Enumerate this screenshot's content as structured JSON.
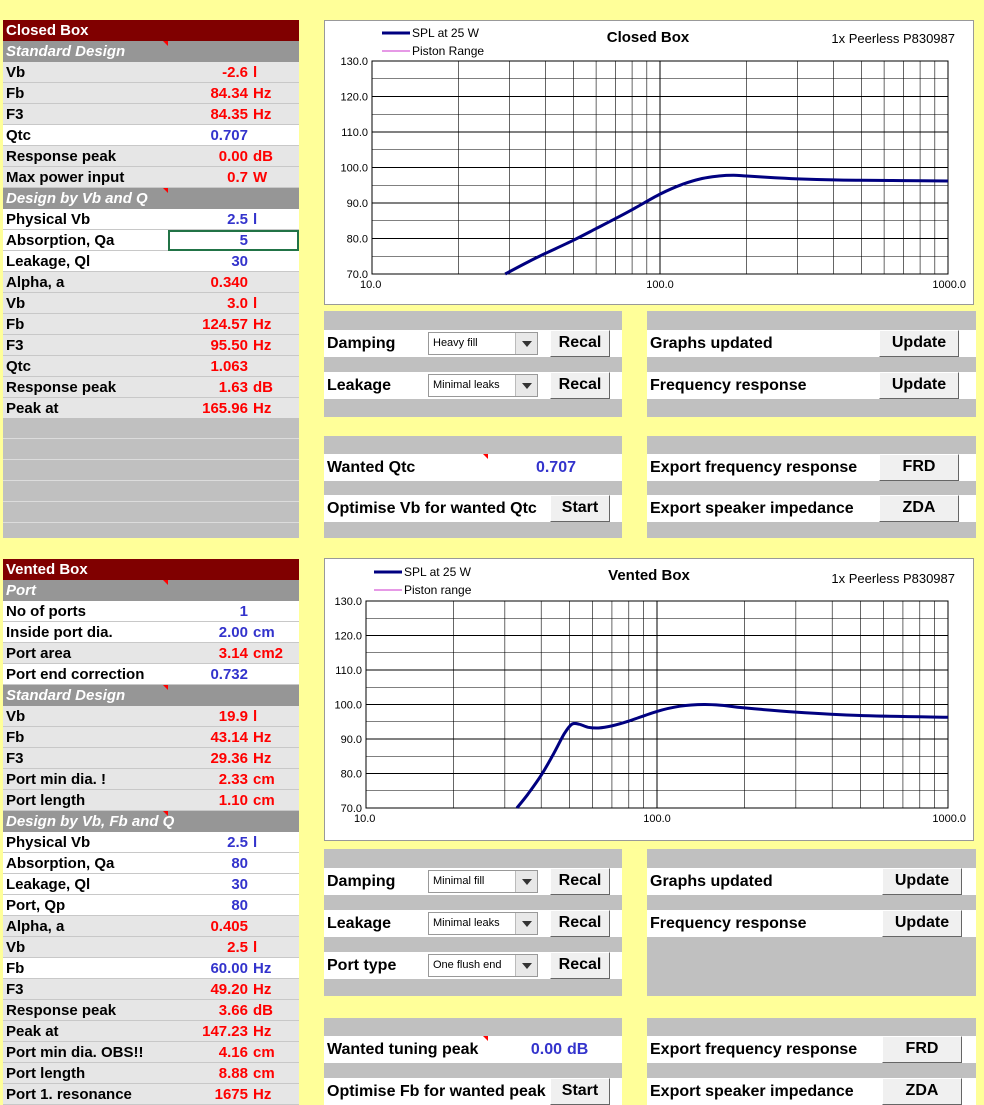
{
  "closed_table": {
    "title": "Closed Box",
    "rows": [
      {
        "label": "Standard Design",
        "kind": "sec"
      },
      {
        "label": "Vb",
        "value": "-2.6",
        "unit": "l",
        "color": "red"
      },
      {
        "label": "Fb",
        "value": "84.34",
        "unit": "Hz",
        "color": "red"
      },
      {
        "label": "F3",
        "value": "84.35",
        "unit": "Hz",
        "color": "red"
      },
      {
        "label": "Qtc",
        "value": "0.707",
        "unit": "",
        "color": "blue"
      },
      {
        "label": "Response peak",
        "value": "0.00",
        "unit": "dB",
        "color": "red"
      },
      {
        "label": "Max power input",
        "value": "0.7",
        "unit": "W",
        "color": "red"
      },
      {
        "label": "Design by Vb and Q",
        "kind": "sec"
      },
      {
        "label": "Physical Vb",
        "value": "2.5",
        "unit": "l",
        "color": "blue"
      },
      {
        "label": "Absorption, Qa",
        "value": "5",
        "unit": "",
        "color": "blue",
        "selected": true
      },
      {
        "label": "Leakage, Ql",
        "value": "30",
        "unit": "",
        "color": "blue"
      },
      {
        "label": "Alpha, a",
        "value": "0.340",
        "unit": "",
        "color": "red"
      },
      {
        "label": "Vb",
        "value": "3.0",
        "unit": "l",
        "color": "red"
      },
      {
        "label": "Fb",
        "value": "124.57",
        "unit": "Hz",
        "color": "red"
      },
      {
        "label": "F3",
        "value": "95.50",
        "unit": "Hz",
        "color": "red"
      },
      {
        "label": "Qtc",
        "value": "1.063",
        "unit": "",
        "color": "red"
      },
      {
        "label": "Response peak",
        "value": "1.63",
        "unit": "dB",
        "color": "red"
      },
      {
        "label": "Peak at",
        "value": "165.96",
        "unit": "Hz",
        "color": "red"
      }
    ]
  },
  "vented_table": {
    "title": "Vented Box",
    "rows": [
      {
        "label": "Port",
        "kind": "sec"
      },
      {
        "label": "No of ports",
        "value": "1",
        "unit": "",
        "color": "blue"
      },
      {
        "label": "Inside port dia.",
        "value": "2.00",
        "unit": "cm",
        "color": "blue"
      },
      {
        "label": "Port area",
        "value": "3.14",
        "unit": "cm2",
        "color": "red"
      },
      {
        "label": "Port end correction",
        "value": "0.732",
        "unit": "",
        "color": "blue"
      },
      {
        "label": "Standard Design",
        "kind": "sec"
      },
      {
        "label": "Vb",
        "value": "19.9",
        "unit": "l",
        "color": "red"
      },
      {
        "label": "Fb",
        "value": "43.14",
        "unit": "Hz",
        "color": "red"
      },
      {
        "label": "F3",
        "value": "29.36",
        "unit": "Hz",
        "color": "red"
      },
      {
        "label": "Port min dia. !",
        "value": "2.33",
        "unit": "cm",
        "color": "red"
      },
      {
        "label": "Port length",
        "value": "1.10",
        "unit": "cm",
        "color": "red"
      },
      {
        "label": "Design by Vb, Fb and Q",
        "kind": "sec"
      },
      {
        "label": "Physical Vb",
        "value": "2.5",
        "unit": "l",
        "color": "blue"
      },
      {
        "label": "Absorption, Qa",
        "value": "80",
        "unit": "",
        "color": "blue"
      },
      {
        "label": "Leakage, Ql",
        "value": "30",
        "unit": "",
        "color": "blue"
      },
      {
        "label": "Port, Qp",
        "value": "80",
        "unit": "",
        "color": "blue"
      },
      {
        "label": "Alpha, a",
        "value": "0.405",
        "unit": "",
        "color": "red"
      },
      {
        "label": "Vb",
        "value": "2.5",
        "unit": "l",
        "color": "red"
      },
      {
        "label": "Fb",
        "value": "60.00",
        "unit": "Hz",
        "color": "blue"
      },
      {
        "label": "F3",
        "value": "49.20",
        "unit": "Hz",
        "color": "red"
      },
      {
        "label": "Response peak",
        "value": "3.66",
        "unit": "dB",
        "color": "red"
      },
      {
        "label": "Peak at",
        "value": "147.23",
        "unit": "Hz",
        "color": "red"
      },
      {
        "label": "Port min dia. OBS!!",
        "value": "4.16",
        "unit": "cm",
        "color": "red"
      },
      {
        "label": "Port length",
        "value": "8.88",
        "unit": "cm",
        "color": "red"
      },
      {
        "label": "Port 1. resonance",
        "value": "1675",
        "unit": "Hz",
        "color": "red"
      }
    ]
  },
  "closed_controls": {
    "damping_label": "Damping",
    "damping_value": "Heavy fill",
    "recal": "Recal",
    "leakage_label": "Leakage",
    "leakage_value": "Minimal leaks",
    "wanted_qtc_label": "Wanted Qtc",
    "wanted_qtc_value": "0.707",
    "optimise_label": "Optimise Vb for wanted Qtc",
    "start": "Start"
  },
  "closed_right": {
    "graphs_updated": "Graphs updated",
    "freq_response": "Frequency response",
    "update": "Update",
    "export_freq": "Export frequency response",
    "frd": "FRD",
    "export_imp": "Export speaker impedance",
    "zda": "ZDA"
  },
  "vented_controls": {
    "damping_label": "Damping",
    "damping_value": "Minimal fill",
    "recal": "Recal",
    "leakage_label": "Leakage",
    "leakage_value": "Minimal leaks",
    "port_type_label": "Port type",
    "port_type_value": "One flush end",
    "wanted_peak_label": "Wanted tuning peak",
    "wanted_peak_value": "0.00",
    "wanted_peak_unit": "dB",
    "optimise_label": "Optimise Fb for wanted peak",
    "start": "Start"
  },
  "vented_right": {
    "graphs_updated": "Graphs updated",
    "freq_response": "Frequency response",
    "update": "Update",
    "export_freq": "Export frequency response",
    "frd": "FRD",
    "export_imp": "Export speaker impedance",
    "zda": "ZDA"
  },
  "chart_data": [
    {
      "type": "line",
      "title": "Closed Box",
      "subtitle": "1x Peerless P830987",
      "x_scale": "log",
      "xlim": [
        10,
        1000
      ],
      "ylim": [
        70,
        130
      ],
      "x_ticks": [
        "10.0",
        "100.0",
        "1000.0"
      ],
      "y_ticks": [
        "70.0",
        "80.0",
        "90.0",
        "100.0",
        "110.0",
        "120.0",
        "130.0"
      ],
      "grid": true,
      "legend_position": "top-left",
      "series": [
        {
          "name": "SPL at 25 W",
          "color": "#000080",
          "x": [
            29,
            35,
            40,
            50,
            60,
            70,
            80,
            100,
            120,
            140,
            160,
            180,
            200,
            250,
            300,
            400,
            500,
            700,
            1000
          ],
          "y": [
            70,
            73.5,
            75.8,
            79.5,
            82.8,
            85.6,
            88.1,
            92.5,
            95.3,
            96.9,
            97.6,
            97.8,
            97.6,
            97.1,
            96.8,
            96.5,
            96.4,
            96.3,
            96.2
          ]
        },
        {
          "name": "Piston Range",
          "color": "#CC33CC",
          "x": [],
          "y": []
        }
      ]
    },
    {
      "type": "line",
      "title": "Vented Box",
      "subtitle": "1x Peerless P830987",
      "x_scale": "log",
      "xlim": [
        10,
        1000
      ],
      "ylim": [
        70,
        130
      ],
      "x_ticks": [
        "10.0",
        "100.0",
        "1000.0"
      ],
      "y_ticks": [
        "70.0",
        "80.0",
        "90.0",
        "100.0",
        "110.0",
        "120.0",
        "130.0"
      ],
      "grid": true,
      "legend_position": "top-left",
      "series": [
        {
          "name": "SPL at 25 W",
          "color": "#000080",
          "x": [
            33,
            36,
            40,
            44,
            48,
            51,
            54,
            58,
            63,
            70,
            80,
            100,
            120,
            145,
            170,
            200,
            300,
            500,
            1000
          ],
          "y": [
            70,
            74,
            79.5,
            85.5,
            91.5,
            94.3,
            94.3,
            93.4,
            93.2,
            93.8,
            95.2,
            98,
            99.5,
            100,
            99.7,
            99,
            97.8,
            96.8,
            96.3
          ]
        },
        {
          "name": "Piston range",
          "color": "#CC33CC",
          "x": [],
          "y": []
        }
      ]
    }
  ]
}
